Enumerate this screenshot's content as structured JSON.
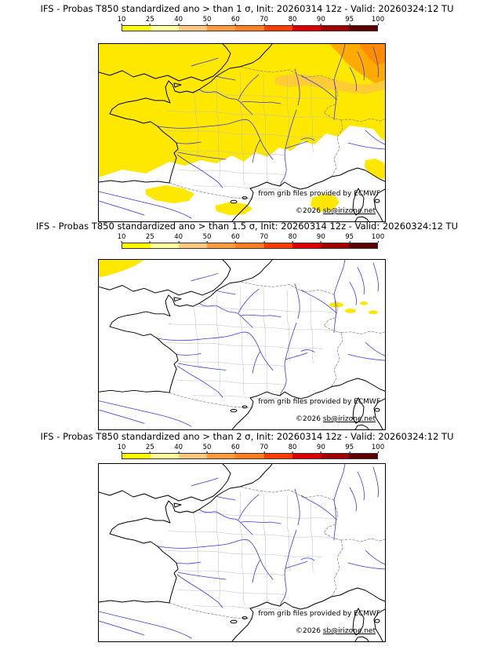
{
  "page": {
    "background": "#ffffff"
  },
  "colorbar": {
    "ticks": [
      "10",
      "25",
      "40",
      "50",
      "60",
      "70",
      "80",
      "90",
      "95",
      "100"
    ],
    "colors": [
      "#ffff00",
      "#ffff9e",
      "#ffc97f",
      "#ff9a3d",
      "#ff7f1e",
      "#ff3d00",
      "#dd0000",
      "#a00000",
      "#5e0000"
    ]
  },
  "map_colors": {
    "coastline": "#000000",
    "country_border": "#909090",
    "river": "#3a3ae8",
    "department_boundary": "#bdbdbd",
    "prob_yellow": "#ffe800",
    "prob_light_orange": "#ffcc33",
    "prob_orange": "#ffaa00",
    "prob_dark_orange": "#ff8c00"
  },
  "panels": [
    {
      "title": "IFS - Probas T850  standardized ano > than 1 σ, Init: 20260314 12z - Valid: 20260324:12 TU",
      "credit_line1": "from grib files provided by ECMWF",
      "credit_prefix": "©2026 ",
      "credit_link": "sb@irizone.net"
    },
    {
      "title": "IFS - Probas T850  standardized ano > than 1.5 σ, Init: 20260314 12z - Valid: 20260324:12 TU",
      "credit_line1": "from grib files provided by ECMWF",
      "credit_prefix": "©2026 ",
      "credit_link": "sb@irizone.net"
    },
    {
      "title": "IFS - Probas T850  standardized ano > than 2 σ, Init: 20260314 12z - Valid: 20260324:12 TU",
      "credit_line1": "from grib files provided by ECMWF",
      "credit_prefix": "©2026 ",
      "credit_link": "sb@irizone.net"
    }
  ],
  "chart_data": [
    {
      "type": "heatmap",
      "title": "IFS - Probas T850 standardized ano > than 1 σ",
      "init": "20260314 12z",
      "valid": "20260324:12 TU",
      "region": "France and surrounding Western Europe",
      "legend": {
        "ticks": [
          10,
          25,
          40,
          50,
          60,
          70,
          80,
          90,
          95,
          100
        ],
        "unit": "%",
        "position": "top"
      },
      "observed_field": "Yellow (10-25%) covers northern France, Brittany, Benelux and southern England; orange (40-70%) over the far northeast corner; scattered yellow patches over the Pyrenees, south-central France, around Corsica/Sardinia and along the right edge; white (<10%) over southern France and the Mediterranean"
    },
    {
      "type": "heatmap",
      "title": "IFS - Probas T850 standardized ano > than 1.5 σ",
      "init": "20260314 12z",
      "valid": "20260324:12 TU",
      "region": "France and surrounding Western Europe",
      "legend": {
        "ticks": [
          10,
          25,
          40,
          50,
          60,
          70,
          80,
          90,
          95,
          100
        ],
        "unit": "%",
        "position": "top"
      },
      "observed_field": "Almost entirely below 10% (white); small yellow patch at the top-left corner and a few tiny yellow streaks near the Rhine/Alsace area"
    },
    {
      "type": "heatmap",
      "title": "IFS - Probas T850 standardized ano > than 2 σ",
      "init": "20260314 12z",
      "valid": "20260324:12 TU",
      "region": "France and surrounding Western Europe",
      "legend": {
        "ticks": [
          10,
          25,
          40,
          50,
          60,
          70,
          80,
          90,
          95,
          100
        ],
        "unit": "%",
        "position": "top"
      },
      "observed_field": "Entirely below 10% (white), no shaded areas"
    }
  ]
}
